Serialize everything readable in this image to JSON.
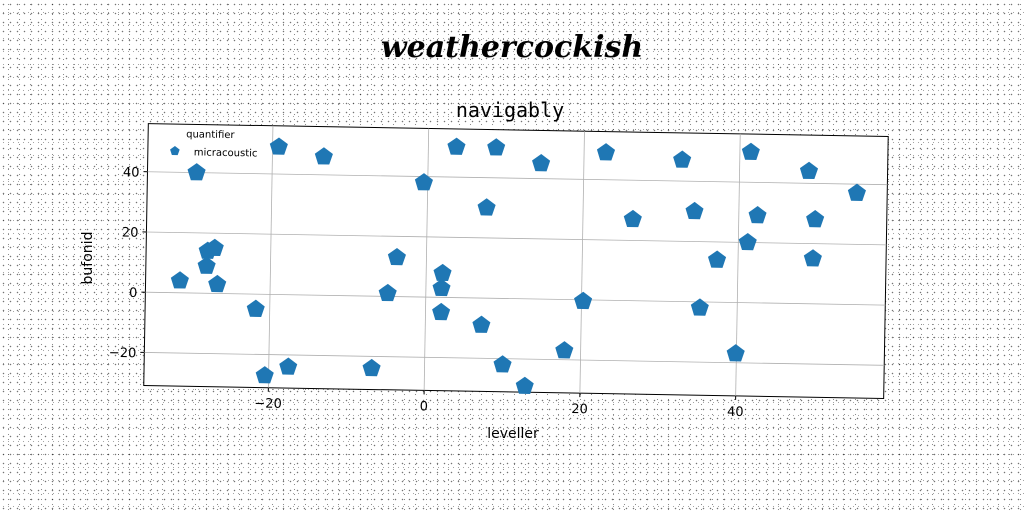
{
  "suptitle": "weathercockish",
  "chart_data": {
    "type": "scatter",
    "title": "navigably",
    "xlabel": "leveller",
    "ylabel": "bufonid",
    "xlim": [
      -36,
      59
    ],
    "ylim": [
      -31,
      56
    ],
    "xticks": [
      -20,
      0,
      20,
      40
    ],
    "yticks": [
      -20,
      0,
      20,
      40
    ],
    "xtick_labels": [
      "−20",
      "0",
      "20",
      "40"
    ],
    "ytick_labels": [
      "−20",
      "0",
      "20",
      "40"
    ],
    "grid": true,
    "legend": {
      "title": "quantifier",
      "entries": [
        "micracoustic"
      ],
      "placement": "top-left"
    },
    "marker": "pentagon",
    "color": "#1f77b4",
    "series": [
      {
        "name": "micracoustic",
        "points": [
          [
            -31.6,
            4
          ],
          [
            -29.7,
            40
          ],
          [
            -28.1,
            14
          ],
          [
            -27.2,
            15
          ],
          [
            -28.2,
            9
          ],
          [
            -26.8,
            3
          ],
          [
            -21.8,
            -5
          ],
          [
            -20.5,
            -27
          ],
          [
            -19.2,
            49
          ],
          [
            -17.5,
            -24
          ],
          [
            -13.4,
            46
          ],
          [
            -6.8,
            -24
          ],
          [
            -4.9,
            1
          ],
          [
            -3.8,
            13
          ],
          [
            -0.5,
            38
          ],
          [
            2.1,
            8
          ],
          [
            2.0,
            3
          ],
          [
            2.0,
            -5
          ],
          [
            3.6,
            50
          ],
          [
            7.2,
            -9
          ],
          [
            7.6,
            30
          ],
          [
            8.7,
            50
          ],
          [
            10.0,
            -22
          ],
          [
            12.9,
            -29
          ],
          [
            14.5,
            45
          ],
          [
            17.9,
            -17
          ],
          [
            20.2,
            -0.5
          ],
          [
            22.8,
            49
          ],
          [
            26.4,
            27
          ],
          [
            32.6,
            47
          ],
          [
            34.3,
            30
          ],
          [
            35.2,
            -2
          ],
          [
            37.3,
            14
          ],
          [
            39.9,
            -17
          ],
          [
            41.2,
            20
          ],
          [
            41.4,
            50
          ],
          [
            42.4,
            29
          ],
          [
            48.9,
            44
          ],
          [
            49.6,
            15
          ],
          [
            49.8,
            28
          ],
          [
            55.1,
            37
          ]
        ]
      }
    ]
  }
}
